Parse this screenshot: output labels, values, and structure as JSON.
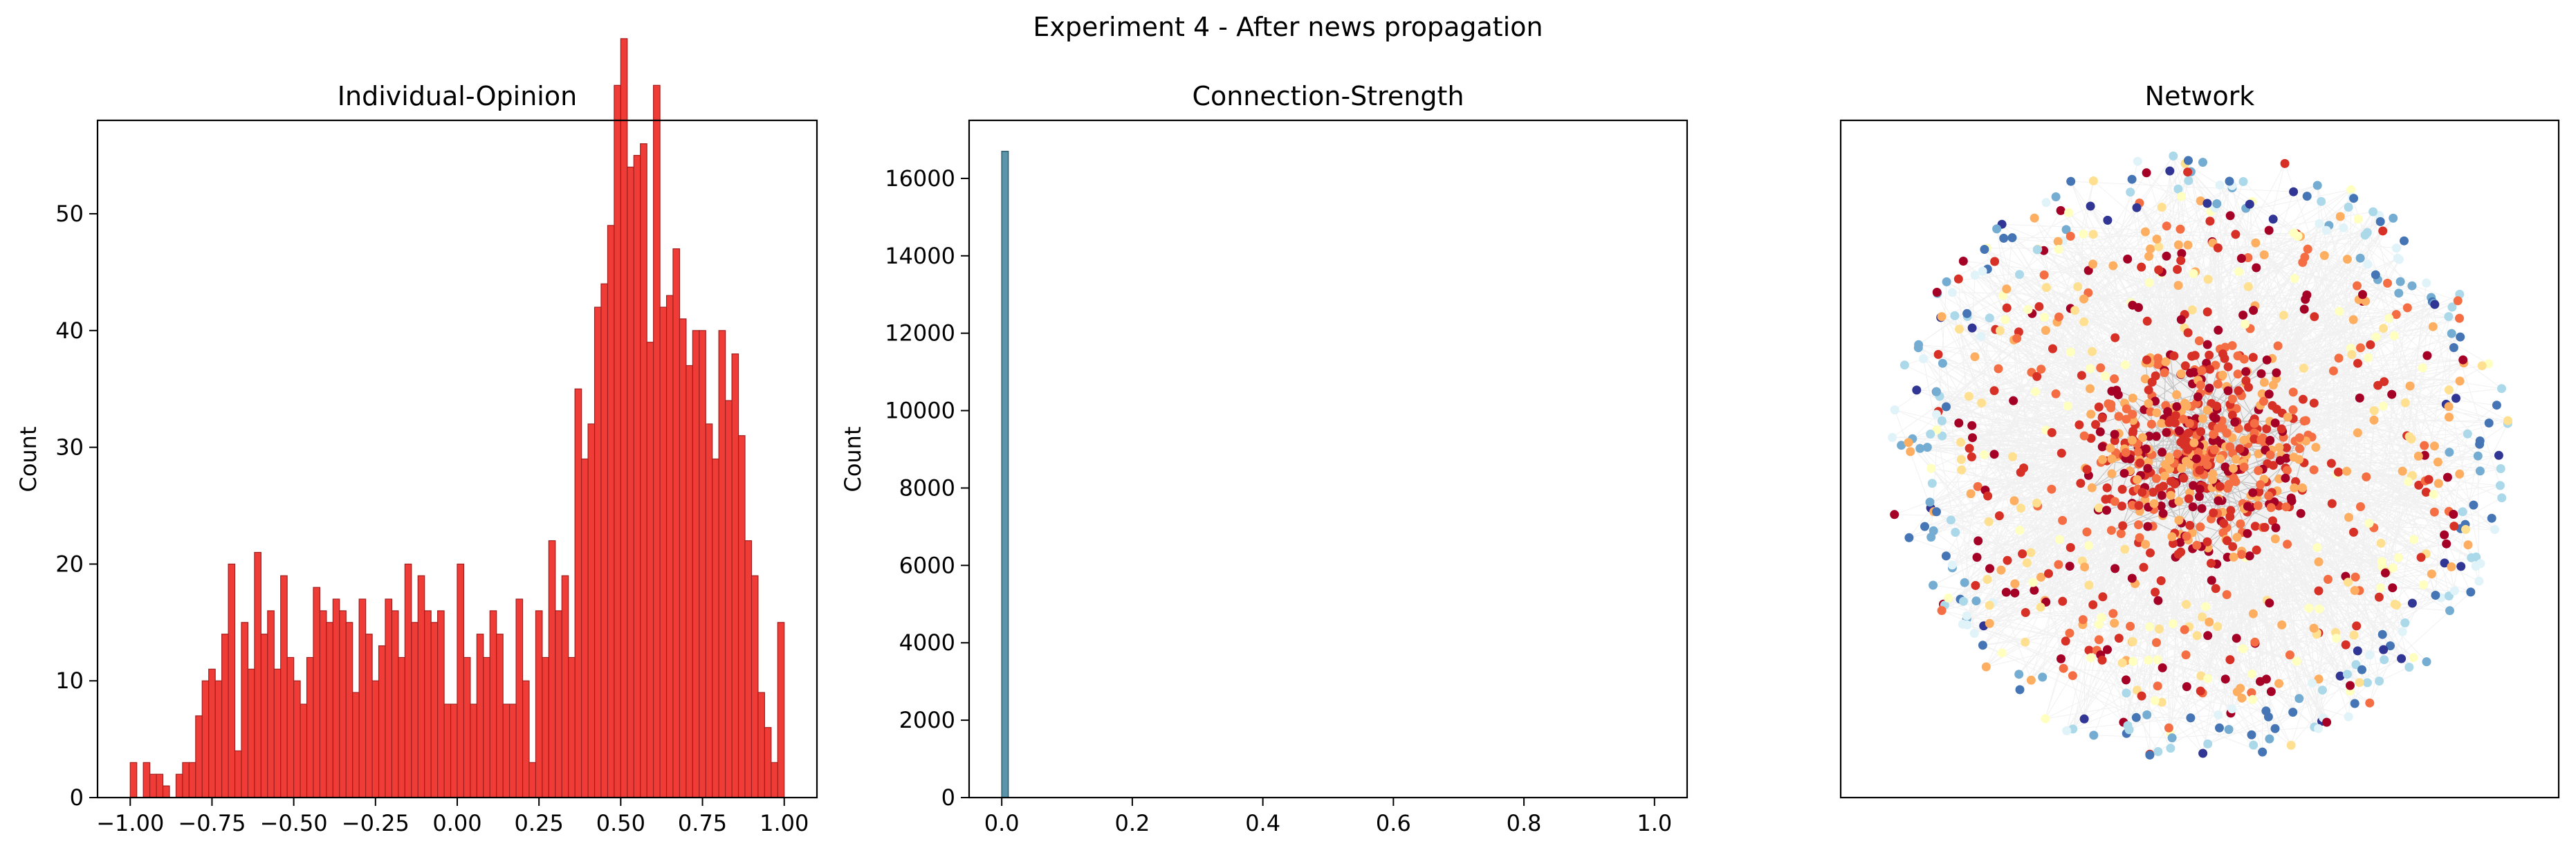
{
  "suptitle": "Experiment 4 - After news propagation",
  "colors": {
    "hist_fill": "#f03c37",
    "hist_edge": "#a11e1e",
    "conn_fill": "#5b95ab",
    "conn_edge": "#2f5f72",
    "edge_color": "#d6d6d6"
  },
  "chart_data": [
    {
      "type": "bar",
      "title": "Individual-Opinion",
      "xlabel": "",
      "ylabel": "Count",
      "xlim": [
        -1.1,
        1.1
      ],
      "ylim": [
        0,
        58
      ],
      "bins": {
        "start": -1.0,
        "end": 1.0,
        "count": 100
      },
      "values": [
        3,
        0,
        3,
        2,
        2,
        1,
        0,
        2,
        3,
        3,
        7,
        10,
        11,
        10,
        14,
        20,
        4,
        15,
        11,
        21,
        14,
        16,
        11,
        19,
        12,
        10,
        8,
        12,
        18,
        16,
        15,
        17,
        16,
        15,
        9,
        17,
        14,
        10,
        13,
        17,
        16,
        12,
        20,
        15,
        19,
        16,
        15,
        16,
        8,
        8,
        20,
        12,
        8,
        14,
        12,
        16,
        14,
        8,
        8,
        17,
        10,
        3,
        16,
        12,
        22,
        16,
        19,
        12,
        35,
        29,
        32,
        42,
        44,
        49,
        61,
        65,
        54,
        55,
        56,
        39,
        61,
        42,
        43,
        47,
        41,
        37,
        40,
        40,
        32,
        29,
        40,
        34,
        38,
        31,
        22,
        19,
        9,
        6,
        3,
        15
      ],
      "xticks": [
        -1.0,
        -0.75,
        -0.5,
        -0.25,
        0.0,
        0.25,
        0.5,
        0.75,
        1.0
      ],
      "xtick_labels": [
        "−1.00",
        "−0.75",
        "−0.50",
        "−0.25",
        "0.00",
        "0.25",
        "0.50",
        "0.75",
        "1.00"
      ],
      "yticks": [
        0,
        10,
        20,
        30,
        40,
        50
      ],
      "ytick_labels": [
        "0",
        "10",
        "20",
        "30",
        "40",
        "50"
      ]
    },
    {
      "type": "bar",
      "title": "Connection-Strength",
      "xlabel": "",
      "ylabel": "Count",
      "xlim": [
        -0.05,
        1.05
      ],
      "ylim": [
        0,
        17500
      ],
      "bins": [
        {
          "x0": 0.0,
          "x1": 0.01,
          "value": 16700
        }
      ],
      "xticks": [
        0.0,
        0.2,
        0.4,
        0.6,
        0.8,
        1.0
      ],
      "xtick_labels": [
        "0.0",
        "0.2",
        "0.4",
        "0.6",
        "0.8",
        "1.0"
      ],
      "yticks": [
        0,
        2000,
        4000,
        6000,
        8000,
        10000,
        12000,
        14000,
        16000
      ],
      "ytick_labels": [
        "0",
        "2000",
        "4000",
        "6000",
        "8000",
        "10000",
        "12000",
        "14000",
        "16000"
      ]
    },
    {
      "type": "scatter",
      "title": "Network",
      "node_colormap": [
        "#313695",
        "#4575b4",
        "#74add1",
        "#abd9e9",
        "#e0f3f8",
        "#ffffbf",
        "#fee090",
        "#fdae61",
        "#f46d43",
        "#d73027",
        "#a50026"
      ],
      "axes_ticks": "none"
    }
  ]
}
